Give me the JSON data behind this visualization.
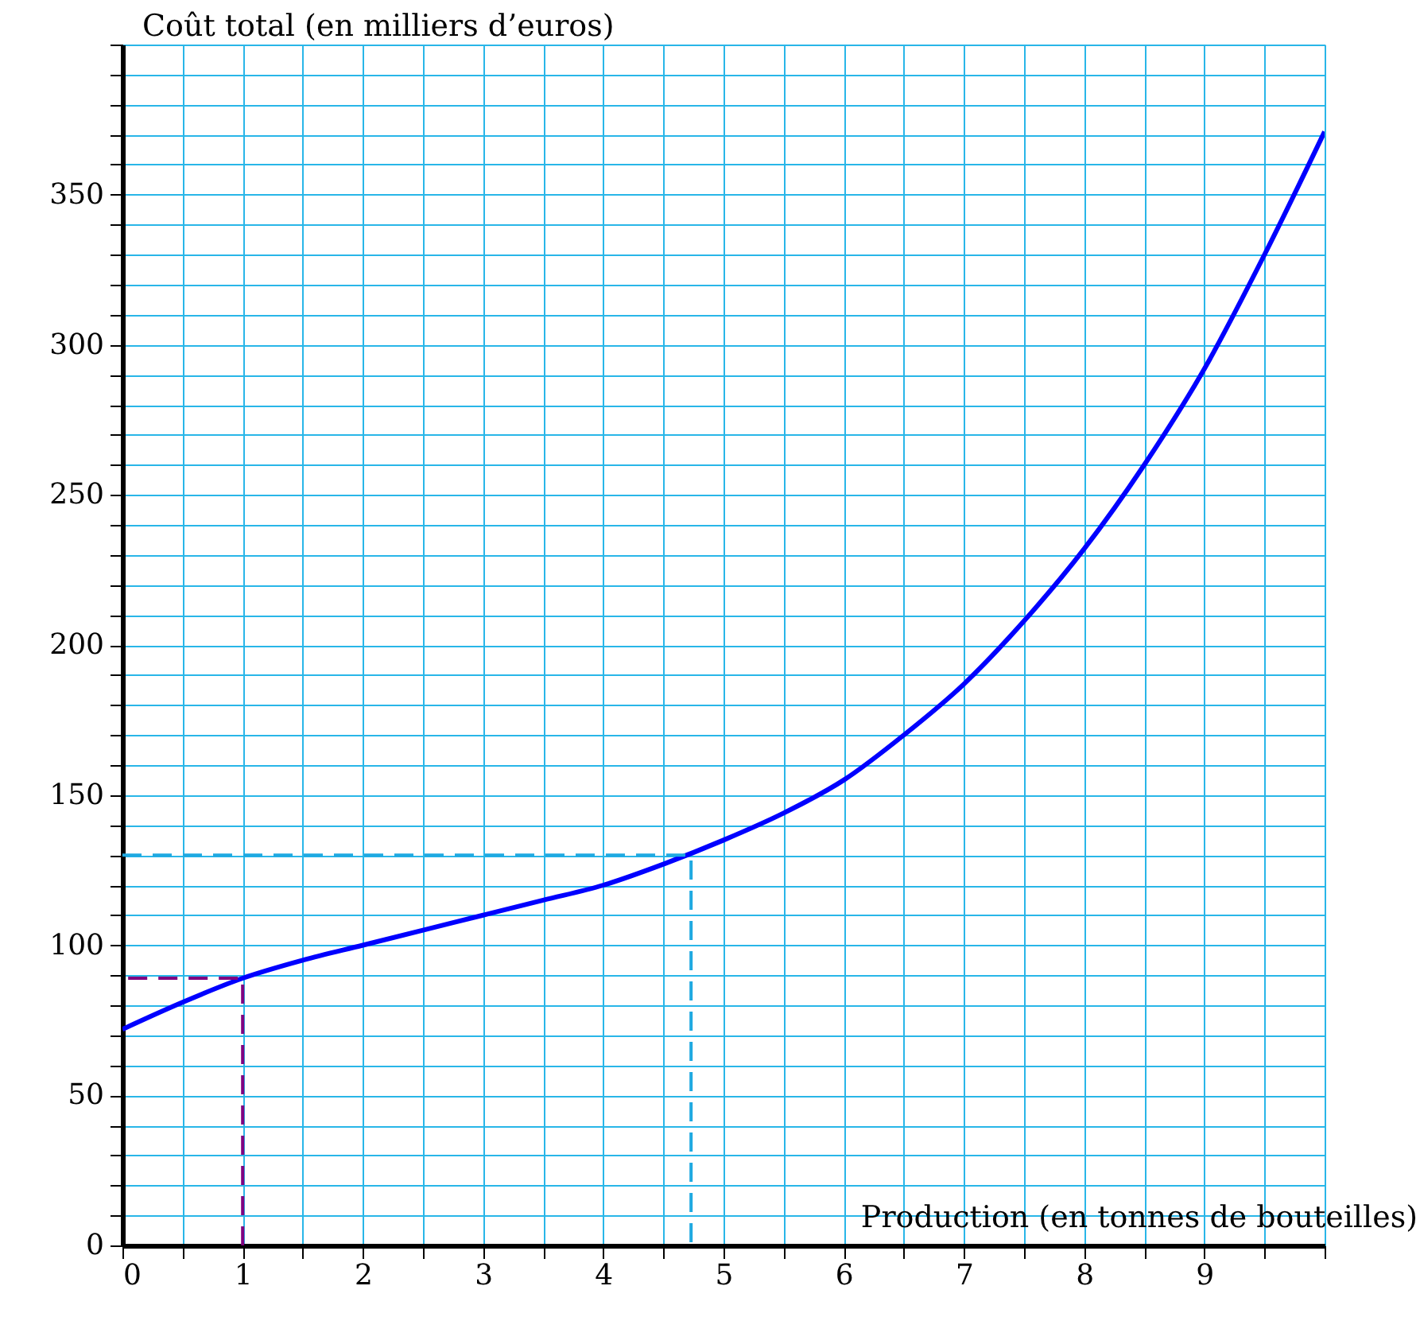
{
  "chart_data": {
    "type": "line",
    "xlabel": "Production (en tonnes de bouteilles)",
    "ylabel": "Coût total (en milliers d’euros)",
    "xlim": [
      0,
      10
    ],
    "ylim": [
      0,
      400
    ],
    "xticks": [
      0,
      {
        "value": 0.5,
        "label": null
      },
      1,
      {
        "value": 1.5,
        "label": null
      },
      2,
      {
        "value": 2.5,
        "label": null
      },
      3,
      {
        "value": 3.5,
        "label": null
      },
      4,
      {
        "value": 4.5,
        "label": null
      },
      5,
      {
        "value": 5.5,
        "label": null
      },
      6,
      {
        "value": 6.5,
        "label": null
      },
      7,
      {
        "value": 7.5,
        "label": null
      },
      8,
      {
        "value": 8.5,
        "label": null
      },
      9,
      {
        "value": 9.5,
        "label": null
      },
      {
        "value": 10,
        "label": null
      }
    ],
    "yticks": [
      0,
      {
        "value": 10,
        "label": null
      },
      {
        "value": 20,
        "label": null
      },
      {
        "value": 30,
        "label": null
      },
      {
        "value": 40,
        "label": null
      },
      50,
      {
        "value": 60,
        "label": null
      },
      {
        "value": 70,
        "label": null
      },
      {
        "value": 80,
        "label": null
      },
      {
        "value": 90,
        "label": null
      },
      100,
      {
        "value": 110,
        "label": null
      },
      {
        "value": 120,
        "label": null
      },
      {
        "value": 130,
        "label": null
      },
      {
        "value": 140,
        "label": null
      },
      150,
      {
        "value": 160,
        "label": null
      },
      {
        "value": 170,
        "label": null
      },
      {
        "value": 180,
        "label": null
      },
      {
        "value": 190,
        "label": null
      },
      200,
      {
        "value": 210,
        "label": null
      },
      {
        "value": 220,
        "label": null
      },
      {
        "value": 230,
        "label": null
      },
      {
        "value": 240,
        "label": null
      },
      250,
      {
        "value": 260,
        "label": null
      },
      {
        "value": 270,
        "label": null
      },
      {
        "value": 280,
        "label": null
      },
      {
        "value": 290,
        "label": null
      },
      300,
      {
        "value": 310,
        "label": null
      },
      {
        "value": 320,
        "label": null
      },
      {
        "value": 330,
        "label": null
      },
      {
        "value": 340,
        "label": null
      },
      350,
      {
        "value": 360,
        "label": null
      },
      {
        "value": 370,
        "label": null
      },
      {
        "value": 380,
        "label": null
      },
      {
        "value": 390,
        "label": null
      },
      {
        "value": 400,
        "label": null
      }
    ],
    "grid": true,
    "series": [
      {
        "color": "#0000ff",
        "line_style": "solid",
        "x": [
          0,
          0.5,
          1,
          1.5,
          2,
          2.5,
          3,
          3.5,
          4,
          4.5,
          5,
          5.5,
          6,
          6.5,
          7,
          7.5,
          8,
          8.5,
          9,
          9.5,
          10
        ],
        "values": [
          72,
          81,
          89,
          95,
          100,
          105,
          110,
          115,
          120,
          127,
          135,
          144,
          155,
          170,
          187,
          208,
          232,
          260,
          292,
          330,
          371
        ]
      },
      {
        "color": "#800080",
        "line_style": "dashed",
        "x": [
          1,
          1,
          0
        ],
        "values": [
          0,
          89,
          89
        ]
      },
      {
        "color": "#1fa9e1",
        "line_style": "dashed",
        "x": [
          0,
          4.73,
          4.73
        ],
        "values": [
          130,
          130,
          0
        ]
      }
    ]
  }
}
